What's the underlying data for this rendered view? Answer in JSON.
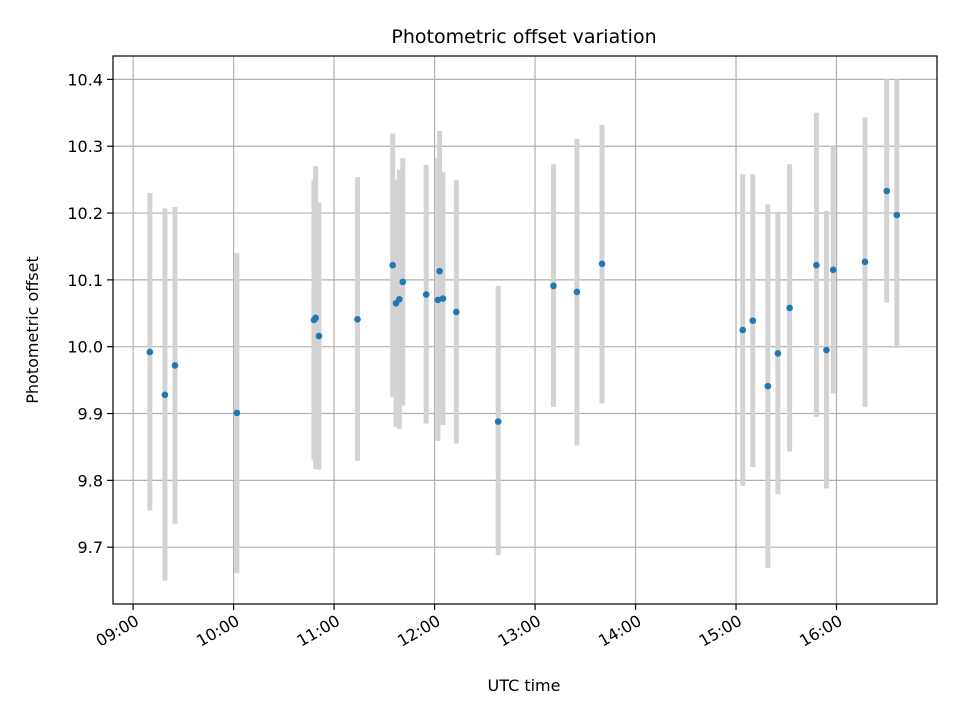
{
  "chart_data": {
    "type": "scatter",
    "title": "Photometric offset variation",
    "xlabel": "UTC time",
    "ylabel": "Photometric offset",
    "x_is_time": true,
    "xlim": [
      "08:48",
      "17:00"
    ],
    "ylim": [
      9.615,
      10.435
    ],
    "x_ticks": [
      "09:00",
      "10:00",
      "11:00",
      "12:00",
      "13:00",
      "14:00",
      "15:00",
      "16:00"
    ],
    "y_ticks": [
      "9.7",
      "9.8",
      "9.9",
      "10.0",
      "10.1",
      "10.2",
      "10.3",
      "10.4"
    ],
    "grid": true,
    "point_color": "#1f77b4",
    "errorbar_color": "#d3d3d3",
    "points": [
      {
        "t": "09:10",
        "y": 9.992,
        "lo": 9.755,
        "hi": 10.23
      },
      {
        "t": "09:19",
        "y": 9.928,
        "lo": 9.65,
        "hi": 10.207
      },
      {
        "t": "09:25",
        "y": 9.972,
        "lo": 9.735,
        "hi": 10.209
      },
      {
        "t": "10:02",
        "y": 9.901,
        "lo": 9.661,
        "hi": 10.14
      },
      {
        "t": "10:48",
        "y": 10.04,
        "lo": 9.83,
        "hi": 10.25
      },
      {
        "t": "10:49",
        "y": 10.043,
        "lo": 9.817,
        "hi": 10.27
      },
      {
        "t": "10:51",
        "y": 10.016,
        "lo": 9.816,
        "hi": 10.216
      },
      {
        "t": "11:14",
        "y": 10.041,
        "lo": 9.829,
        "hi": 10.254
      },
      {
        "t": "11:35",
        "y": 10.122,
        "lo": 9.925,
        "hi": 10.319
      },
      {
        "t": "11:37",
        "y": 10.065,
        "lo": 9.88,
        "hi": 10.25
      },
      {
        "t": "11:39",
        "y": 10.071,
        "lo": 9.877,
        "hi": 10.265
      },
      {
        "t": "11:41",
        "y": 10.097,
        "lo": 9.912,
        "hi": 10.282
      },
      {
        "t": "11:55",
        "y": 10.078,
        "lo": 9.885,
        "hi": 10.272
      },
      {
        "t": "12:02",
        "y": 10.07,
        "lo": 9.859,
        "hi": 10.282
      },
      {
        "t": "12:03",
        "y": 10.113,
        "lo": 9.903,
        "hi": 10.323
      },
      {
        "t": "12:05",
        "y": 10.072,
        "lo": 9.883,
        "hi": 10.261
      },
      {
        "t": "12:13",
        "y": 10.052,
        "lo": 9.855,
        "hi": 10.249
      },
      {
        "t": "12:38",
        "y": 9.888,
        "lo": 9.688,
        "hi": 10.091
      },
      {
        "t": "13:11",
        "y": 10.091,
        "lo": 9.91,
        "hi": 10.273
      },
      {
        "t": "13:25",
        "y": 10.082,
        "lo": 9.852,
        "hi": 10.311
      },
      {
        "t": "13:40",
        "y": 10.124,
        "lo": 9.915,
        "hi": 10.332
      },
      {
        "t": "15:04",
        "y": 10.025,
        "lo": 9.792,
        "hi": 10.258
      },
      {
        "t": "15:10",
        "y": 10.039,
        "lo": 9.82,
        "hi": 10.258
      },
      {
        "t": "15:19",
        "y": 9.941,
        "lo": 9.669,
        "hi": 10.213
      },
      {
        "t": "15:25",
        "y": 9.99,
        "lo": 9.779,
        "hi": 10.202
      },
      {
        "t": "15:32",
        "y": 10.058,
        "lo": 9.843,
        "hi": 10.273
      },
      {
        "t": "15:48",
        "y": 10.122,
        "lo": 9.895,
        "hi": 10.35
      },
      {
        "t": "15:54",
        "y": 9.995,
        "lo": 9.788,
        "hi": 10.203
      },
      {
        "t": "15:58",
        "y": 10.115,
        "lo": 9.93,
        "hi": 10.3
      },
      {
        "t": "16:17",
        "y": 10.127,
        "lo": 9.91,
        "hi": 10.343
      },
      {
        "t": "16:30",
        "y": 10.233,
        "lo": 10.066,
        "hi": 10.4
      },
      {
        "t": "16:36",
        "y": 10.197,
        "lo": 9.998,
        "hi": 10.4
      }
    ]
  }
}
